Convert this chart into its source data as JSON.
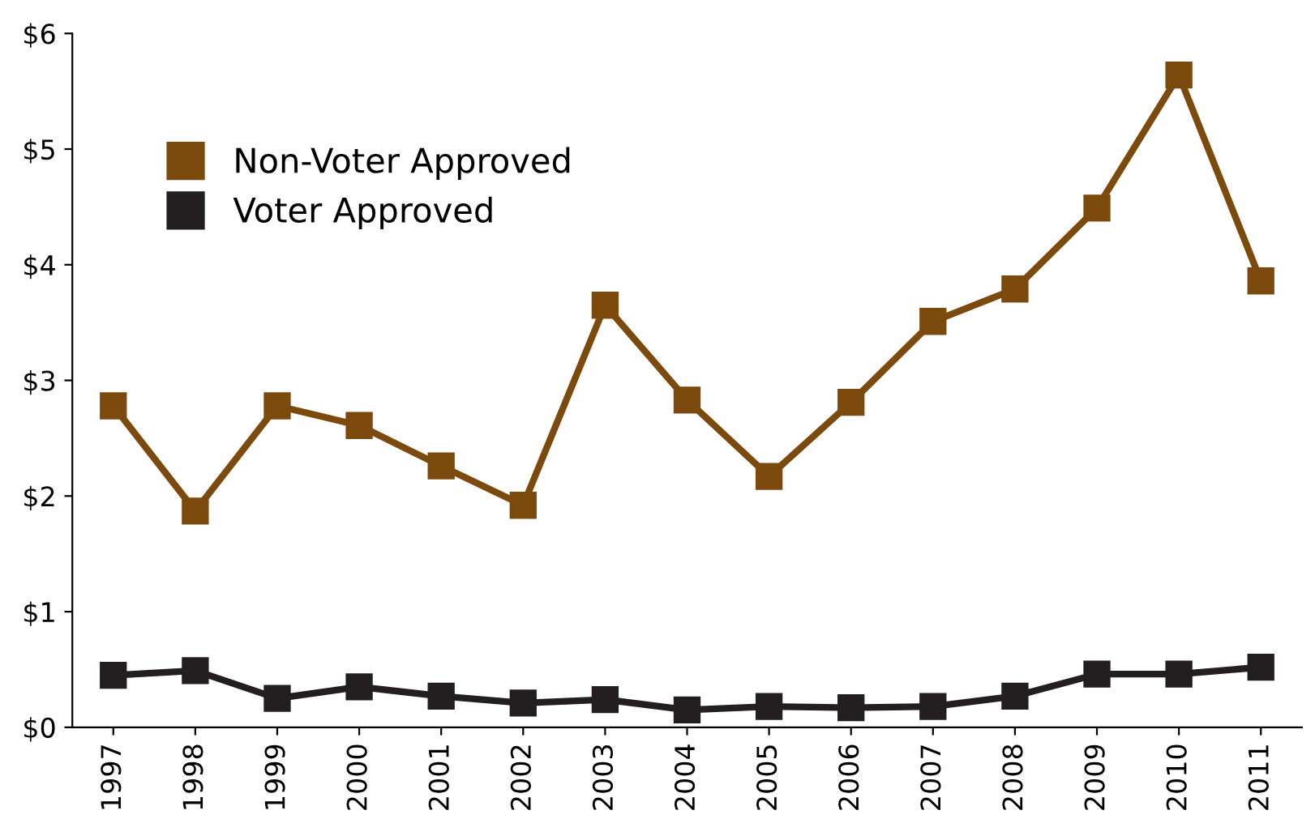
{
  "chart_data": {
    "type": "line",
    "categories": [
      "1997",
      "1998",
      "1999",
      "2000",
      "2001",
      "2002",
      "2003",
      "2004",
      "2005",
      "2006",
      "2007",
      "2008",
      "2009",
      "2010",
      "2011"
    ],
    "series": [
      {
        "name": "Non-Voter Approved",
        "color": "#7b4a0c",
        "values": [
          2.78,
          1.87,
          2.78,
          2.61,
          2.26,
          1.92,
          3.65,
          2.83,
          2.17,
          2.81,
          3.51,
          3.79,
          4.49,
          5.64,
          3.86
        ]
      },
      {
        "name": "Voter Approved",
        "color": "#231f20",
        "values": [
          0.45,
          0.49,
          0.25,
          0.35,
          0.27,
          0.21,
          0.24,
          0.15,
          0.18,
          0.17,
          0.18,
          0.27,
          0.46,
          0.46,
          0.52
        ]
      }
    ],
    "ylim": [
      0,
      6
    ],
    "yticks": [
      {
        "value": 0,
        "label": "$0"
      },
      {
        "value": 1,
        "label": "$1"
      },
      {
        "value": 2,
        "label": "$2"
      },
      {
        "value": 3,
        "label": "$3"
      },
      {
        "value": 4,
        "label": "$4"
      },
      {
        "value": 5,
        "label": "$5"
      },
      {
        "value": 6,
        "label": "$6"
      }
    ],
    "grid": false,
    "legend": "top left",
    "marker": "square",
    "line_style": "solid"
  }
}
